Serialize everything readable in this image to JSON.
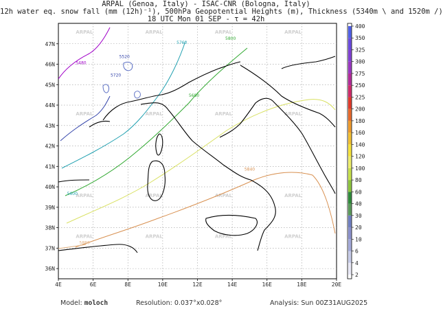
{
  "header": {
    "line1": "ARPAL (Genoa, Italy)  -  ISAC-CNR (Bologna, Italy)",
    "line2": "12h water eq. snow fall (mm (12h)⁻¹), 500hPa Geopotential Heights (m), Thickness (5340m \\ and 1520m /)",
    "line3": "18 UTC Mon 01 SEP  -  τ = 42h"
  },
  "map": {
    "lon_labels": [
      "4E",
      "6E",
      "8E",
      "10E",
      "12E",
      "14E",
      "16E",
      "18E",
      "20E"
    ],
    "lat_labels": [
      "36N",
      "37N",
      "38N",
      "39N",
      "40N",
      "41N",
      "42N",
      "43N",
      "44N",
      "45N",
      "46N",
      "47N"
    ],
    "watermark": "ARPAL",
    "contour_labels": [
      "5480",
      "5520",
      "5600",
      "5680",
      "5720",
      "5760",
      "5800",
      "5840",
      "5880"
    ]
  },
  "colorbar": {
    "levels": [
      "2",
      "4",
      "6",
      "10",
      "20",
      "30",
      "40",
      "60",
      "80",
      "100",
      "120",
      "140",
      "160",
      "180",
      "200",
      "225",
      "250",
      "275",
      "300",
      "325",
      "350",
      "400"
    ],
    "colors": [
      "#ffffff",
      "#e8e8f6",
      "#c6cbe8",
      "#a3a9d9",
      "#8a90cc",
      "#6f7fc2",
      "#5a9a5a",
      "#2e8b3a",
      "#8cc43c",
      "#c6e04a",
      "#eded6a",
      "#f6e23a",
      "#f2bf30",
      "#ee9a2a",
      "#e8682a",
      "#e23a2a",
      "#d02a6a",
      "#b42a9a",
      "#9a36c2",
      "#8040d4",
      "#6a4ae0",
      "#5060e8"
    ]
  },
  "footer": {
    "model_label": "Model:",
    "model_value": "moloch",
    "resolution_label": "Resolution:",
    "resolution_value": "0.037°x0.028°",
    "analysis_label": "Analysis:",
    "analysis_value": "Sun 00Z31AUG2025"
  }
}
